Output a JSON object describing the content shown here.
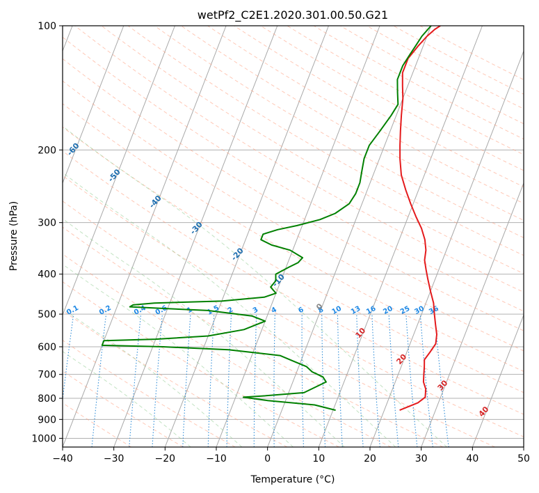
{
  "chart_data": {
    "type": "line",
    "title": "wetPf2_C2E1.2020.301.00.50.G21",
    "xlabel": "Temperature (°C)",
    "ylabel": "Pressure (hPa)",
    "xlim": [
      -40,
      50
    ],
    "ylim": [
      1050,
      100
    ],
    "y_scale": "log",
    "x_ticks": [
      -40,
      -30,
      -20,
      -10,
      0,
      10,
      20,
      30,
      40,
      50
    ],
    "y_ticks": [
      100,
      200,
      300,
      400,
      500,
      600,
      700,
      800,
      900,
      1000
    ],
    "grid": true,
    "series": [
      {
        "variable": "temperature",
        "color": "#e41a1c",
        "points": [
          [
            23.0,
            855
          ],
          [
            26.0,
            820
          ],
          [
            27.0,
            795
          ],
          [
            26.5,
            760
          ],
          [
            25.5,
            730
          ],
          [
            25.0,
            700
          ],
          [
            24.5,
            670
          ],
          [
            24.0,
            645
          ],
          [
            24.5,
            620
          ],
          [
            25.0,
            590
          ],
          [
            24.5,
            560
          ],
          [
            23.5,
            530
          ],
          [
            22.5,
            500
          ],
          [
            21.5,
            470
          ],
          [
            20.0,
            440
          ],
          [
            18.5,
            410
          ],
          [
            17.5,
            390
          ],
          [
            16.5,
            370
          ],
          [
            16.0,
            350
          ],
          [
            15.0,
            330
          ],
          [
            13.5,
            310
          ],
          [
            11.5,
            290
          ],
          [
            9.5,
            270
          ],
          [
            7.5,
            250
          ],
          [
            5.5,
            230
          ],
          [
            4.0,
            210
          ],
          [
            3.0,
            195
          ],
          [
            2.0,
            180
          ],
          [
            1.0,
            165
          ],
          [
            0.0,
            150
          ],
          [
            -1.0,
            140
          ],
          [
            -2.0,
            130
          ],
          [
            -2.0,
            120
          ],
          [
            -1.0,
            112
          ],
          [
            0.0,
            106
          ],
          [
            1.0,
            102
          ],
          [
            1.8,
            100
          ]
        ]
      },
      {
        "variable": "dewpoint",
        "color": "#008000",
        "points": [
          [
            10.5,
            855
          ],
          [
            6.0,
            830
          ],
          [
            -3.5,
            810
          ],
          [
            -8.5,
            795
          ],
          [
            -5.0,
            790
          ],
          [
            3.0,
            775
          ],
          [
            6.5,
            730
          ],
          [
            5.5,
            710
          ],
          [
            3.0,
            690
          ],
          [
            1.5,
            670
          ],
          [
            -1.5,
            650
          ],
          [
            -4.5,
            630
          ],
          [
            -15.0,
            610
          ],
          [
            -28.0,
            600
          ],
          [
            -40.0,
            595
          ],
          [
            -40.0,
            580
          ],
          [
            -30.0,
            575
          ],
          [
            -20.0,
            565
          ],
          [
            -13.5,
            545
          ],
          [
            -10.0,
            520
          ],
          [
            -13.0,
            505
          ],
          [
            -22.0,
            490
          ],
          [
            -30.0,
            485
          ],
          [
            -37.5,
            480
          ],
          [
            -37.0,
            475
          ],
          [
            -33.0,
            470
          ],
          [
            -20.0,
            465
          ],
          [
            -12.0,
            455
          ],
          [
            -10.0,
            445
          ],
          [
            -11.5,
            430
          ],
          [
            -11.0,
            415
          ],
          [
            -11.5,
            400
          ],
          [
            -9.5,
            385
          ],
          [
            -8.0,
            375
          ],
          [
            -7.5,
            365
          ],
          [
            -10.5,
            350
          ],
          [
            -14.5,
            340
          ],
          [
            -17.0,
            330
          ],
          [
            -17.0,
            320
          ],
          [
            -14.5,
            312
          ],
          [
            -11.0,
            305
          ],
          [
            -7.0,
            295
          ],
          [
            -4.5,
            285
          ],
          [
            -2.5,
            270
          ],
          [
            -2.0,
            255
          ],
          [
            -2.0,
            240
          ],
          [
            -2.5,
            225
          ],
          [
            -3.0,
            210
          ],
          [
            -3.0,
            195
          ],
          [
            -2.0,
            180
          ],
          [
            -1.0,
            165
          ],
          [
            -0.5,
            155
          ],
          [
            -1.5,
            145
          ],
          [
            -2.5,
            135
          ],
          [
            -2.5,
            125
          ],
          [
            -2.0,
            118
          ],
          [
            -1.5,
            112
          ],
          [
            -1.0,
            106
          ],
          [
            0.0,
            100
          ]
        ]
      }
    ],
    "dry_adiabats": [
      -100,
      -90,
      -80,
      -70,
      -60,
      -50,
      -40,
      -30,
      -20,
      -10,
      0,
      10,
      20,
      30,
      40
    ],
    "mixing_ratios": [
      "0.1",
      "0.2",
      "0.4",
      "0.6",
      "1",
      "1.5",
      "2",
      "3",
      "4",
      "6",
      "8",
      "10",
      "13",
      "16",
      "20",
      "25",
      "30",
      "36"
    ],
    "adiabat_label_colors": {
      "cold": "#1f6fb0",
      "zero": "#888888",
      "warm": "#d62728"
    },
    "mixing_ratio_label_color": "#1e88e5"
  }
}
